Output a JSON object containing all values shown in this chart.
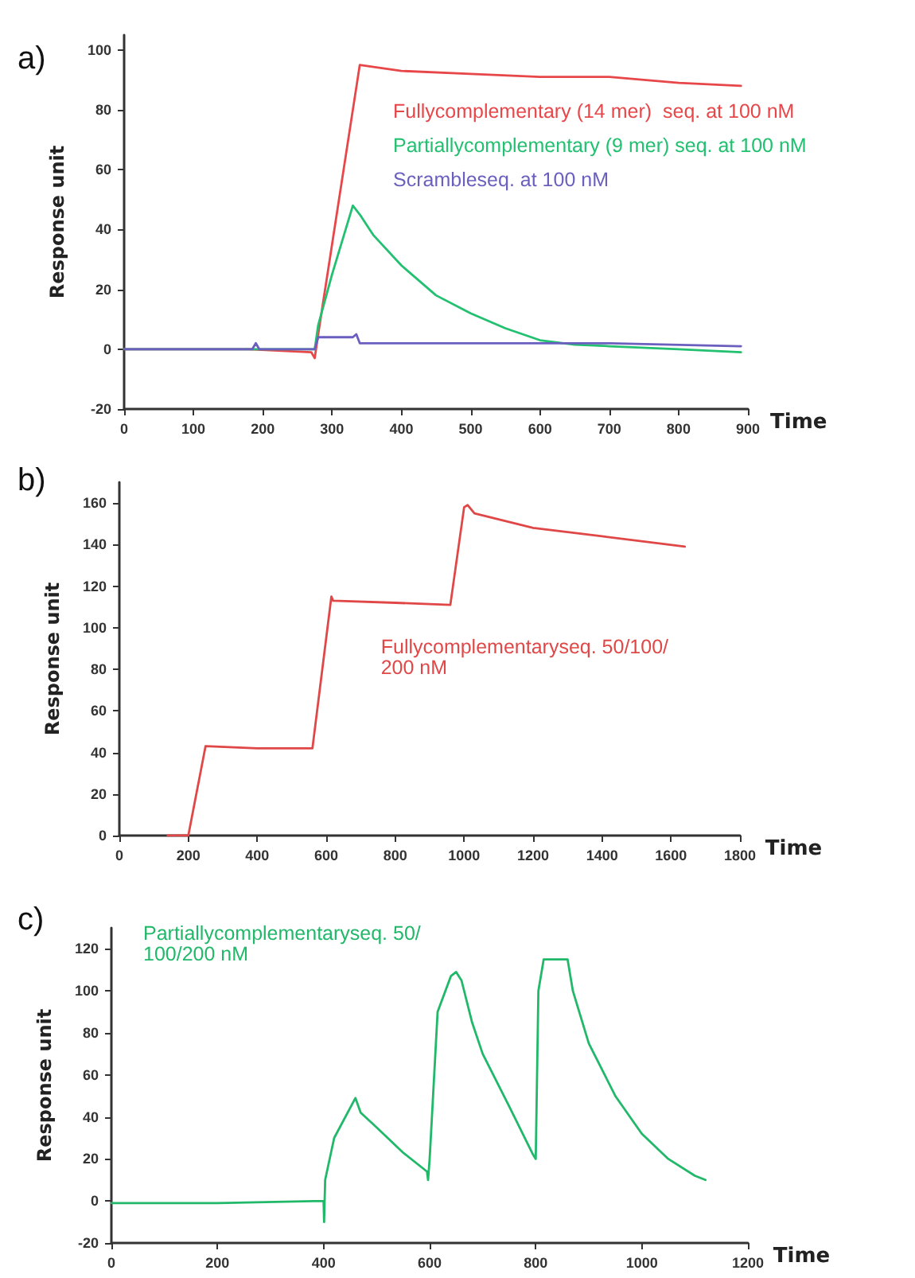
{
  "chart_data": [
    {
      "type": "line",
      "title": "a)",
      "xlabel": "Time",
      "ylabel": "Response unit",
      "xlim": [
        0,
        900
      ],
      "xticks": [
        0,
        100,
        200,
        300,
        400,
        500,
        600,
        700,
        800,
        900
      ],
      "ylim": [
        -20,
        105
      ],
      "yticks": [
        -20,
        0,
        20,
        40,
        60,
        80,
        100
      ],
      "grid": false,
      "legend": "top right",
      "marker": "none",
      "line_style": "solid",
      "series": [
        {
          "name": "Fullycomplementary (14 mer)  seq. at 100 nM",
          "color": "#e8474a",
          "x": [
            0,
            180,
            270,
            275,
            280,
            340,
            400,
            500,
            600,
            700,
            800,
            890
          ],
          "values": [
            0,
            0,
            -1,
            -3,
            5,
            95,
            93,
            92,
            91,
            91,
            89,
            88
          ]
        },
        {
          "name": "Partiallycomplementary (9 mer) seq. at 100 nM",
          "color": "#22c070",
          "x": [
            0,
            185,
            275,
            280,
            300,
            330,
            340,
            360,
            400,
            450,
            500,
            550,
            600,
            650,
            700,
            800,
            890
          ],
          "values": [
            0,
            0,
            0,
            8,
            25,
            48,
            45,
            38,
            28,
            18,
            12,
            7,
            3,
            1.5,
            1,
            0,
            -1
          ]
        },
        {
          "name": "Scrambleseq. at 100 nM",
          "color": "#6a5fbf",
          "x": [
            0,
            185,
            190,
            195,
            275,
            280,
            330,
            335,
            340,
            500,
            700,
            890
          ],
          "values": [
            0,
            0,
            2,
            0,
            0,
            4,
            4,
            5,
            2,
            2,
            2,
            1
          ]
        }
      ]
    },
    {
      "type": "line",
      "title": "b)",
      "xlabel": "Time",
      "ylabel": "Response unit",
      "xlim": [
        0,
        1800
      ],
      "xticks": [
        0,
        200,
        400,
        600,
        800,
        1000,
        1200,
        1400,
        1600,
        1800
      ],
      "ylim": [
        0,
        170
      ],
      "yticks": [
        0,
        20,
        40,
        60,
        80,
        100,
        120,
        140,
        160
      ],
      "grid": false,
      "legend": "right",
      "marker": "none",
      "line_style": "solid",
      "series": [
        {
          "name": "Fullycomplementaryseq. 50/100/200 nM",
          "color": "#e04848",
          "x": [
            140,
            200,
            250,
            400,
            560,
            615,
            620,
            800,
            960,
            1000,
            1010,
            1030,
            1200,
            1400,
            1640
          ],
          "values": [
            0,
            0,
            43,
            42,
            42,
            115,
            113,
            112,
            111,
            158,
            159,
            155,
            148,
            144,
            139
          ]
        }
      ]
    },
    {
      "type": "line",
      "title": "c)",
      "xlabel": "Time",
      "ylabel": "Response unit",
      "xlim": [
        0,
        1200
      ],
      "xticks": [
        0,
        200,
        400,
        600,
        800,
        1000,
        1200
      ],
      "ylim": [
        -20,
        130
      ],
      "yticks": [
        -20,
        0,
        20,
        40,
        60,
        80,
        100,
        120
      ],
      "grid": false,
      "legend": "top left",
      "marker": "none",
      "line_style": "solid",
      "series": [
        {
          "name": "Partiallycomplementaryseq. 50/100/200 nM",
          "color": "#22b86a",
          "x": [
            0,
            200,
            400,
            401,
            403,
            420,
            460,
            470,
            500,
            550,
            595,
            597,
            600,
            615,
            640,
            650,
            660,
            680,
            700,
            750,
            795,
            800,
            805,
            815,
            860,
            870,
            900,
            950,
            1000,
            1050,
            1100,
            1120
          ],
          "values": [
            -1,
            -1,
            0,
            -10,
            10,
            30,
            49,
            42,
            35,
            23,
            14,
            10,
            20,
            90,
            107,
            109,
            105,
            85,
            70,
            45,
            22,
            20,
            100,
            115,
            115,
            100,
            75,
            50,
            32,
            20,
            12,
            10
          ]
        }
      ]
    }
  ]
}
